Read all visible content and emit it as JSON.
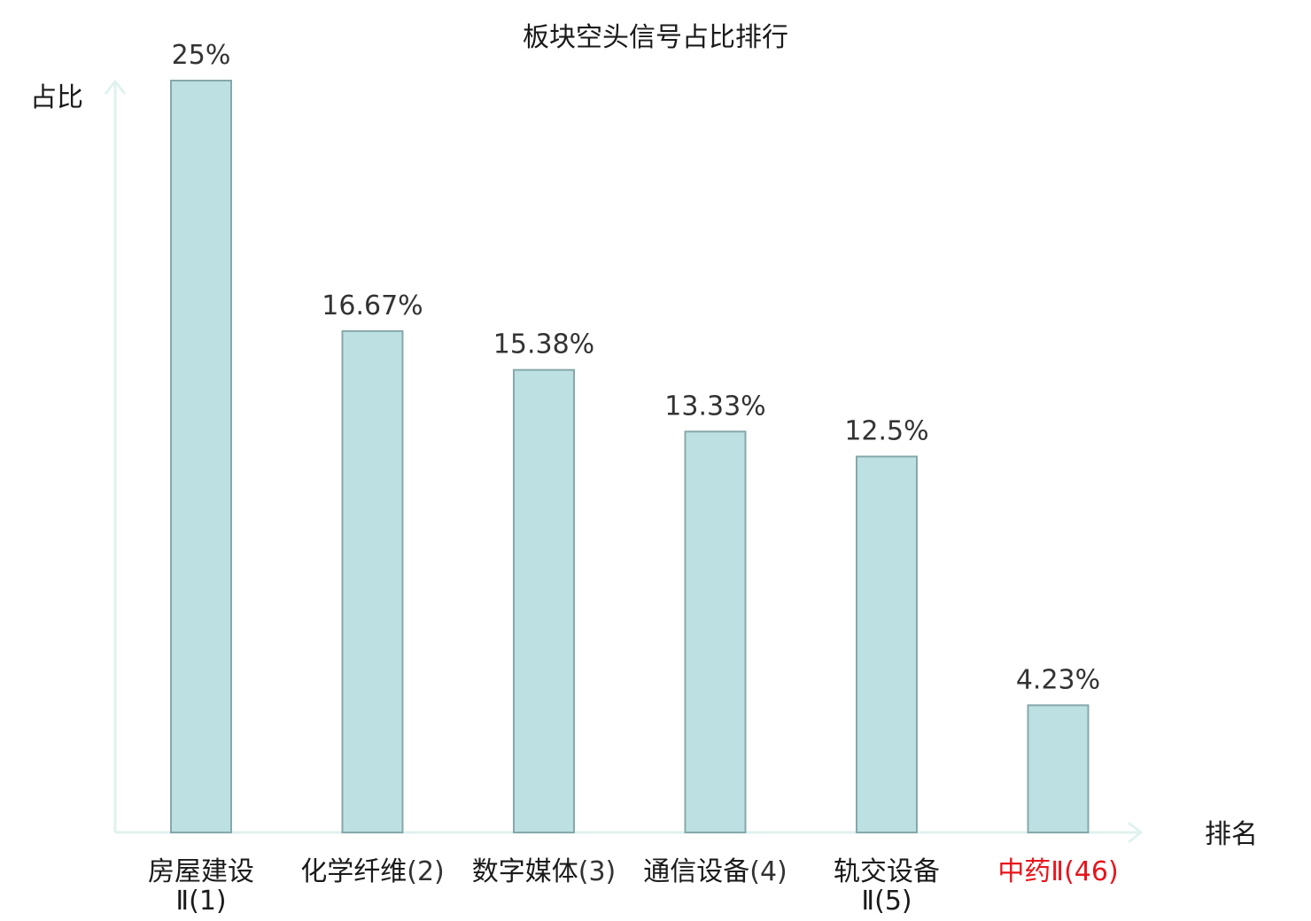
{
  "chart_data": {
    "type": "bar",
    "title": "板块空头信号占比排行",
    "ylabel": "占比",
    "xlabel": "排名",
    "ylim": [
      0,
      25
    ],
    "grid": false,
    "categories": [
      {
        "name": "房屋建设",
        "rank": "Ⅱ(1)",
        "highlight": false
      },
      {
        "name": "化学纤维",
        "rank": "(2)",
        "highlight": false
      },
      {
        "name": "数字媒体",
        "rank": "(3)",
        "highlight": false
      },
      {
        "name": "通信设备",
        "rank": "(4)",
        "highlight": false
      },
      {
        "name": "轨交设备",
        "rank": "Ⅱ(5)",
        "highlight": false
      },
      {
        "name": "中药Ⅱ",
        "rank": "(46)",
        "highlight": true
      }
    ],
    "values": [
      25,
      16.67,
      15.38,
      13.33,
      12.5,
      4.23
    ],
    "value_labels": [
      "25%",
      "16.67%",
      "15.38%",
      "13.33%",
      "12.5%",
      "4.23%"
    ],
    "colors": {
      "bar_fill": "#bde0e3",
      "bar_stroke": "#86a8ab",
      "axis": "#e0f2ef",
      "highlight": "#e8141b",
      "rank_text": "#333333"
    }
  }
}
